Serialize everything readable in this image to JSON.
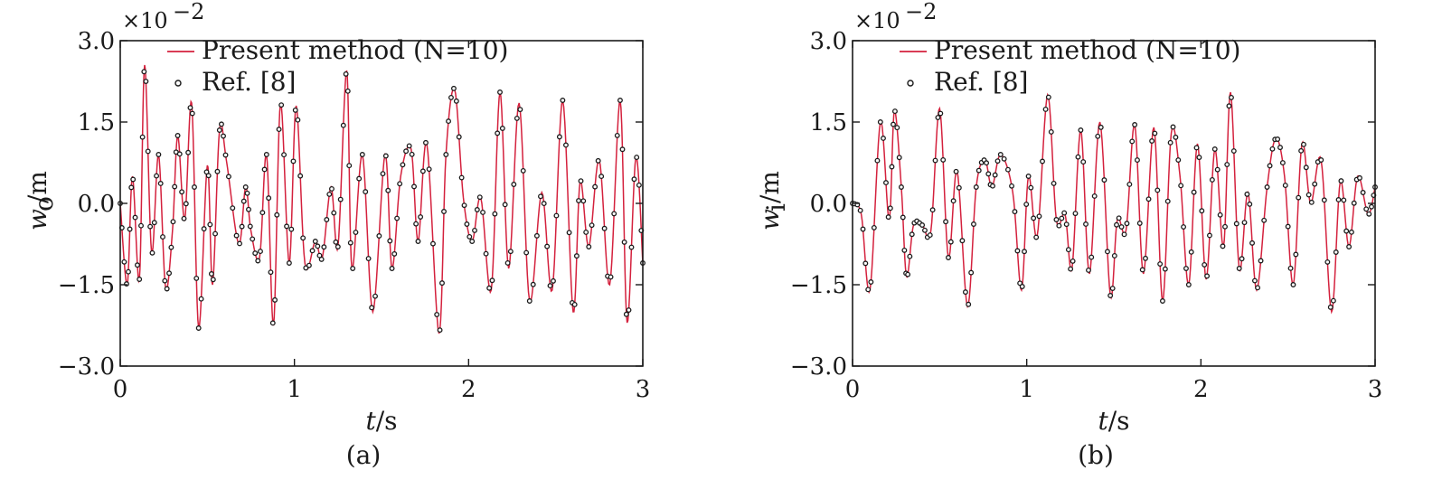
{
  "chart_data": [
    {
      "id": "a",
      "type": "line",
      "caption": "(a)",
      "xlabel": "t/s",
      "ylabel": "w_o/m",
      "ylabel_main": "w",
      "ylabel_sub": "o",
      "ylabel_unit": "/m",
      "sci_multiplier": "×10",
      "sci_exponent": "−2",
      "xlim": [
        0,
        3
      ],
      "ylim": [
        -3.0,
        3.0
      ],
      "xticks": [
        0,
        1,
        2,
        3
      ],
      "xtick_labels": [
        "0",
        "1",
        "2",
        "3"
      ],
      "yticks": [
        -3.0,
        -1.5,
        0.0,
        1.5,
        3.0
      ],
      "ytick_labels": [
        "−3.0",
        "−1.5",
        "0.0",
        "1.5",
        "3.0"
      ],
      "legend": [
        {
          "label": "Present method (N=10)",
          "marker": "line",
          "color": "#d4213d"
        },
        {
          "label": "Ref. [8]",
          "marker": "open-circle",
          "color": "#1a1a1a"
        }
      ],
      "series": [
        {
          "name": "Present method (N=10)",
          "x": [
            0.0,
            0.04,
            0.07,
            0.11,
            0.14,
            0.18,
            0.22,
            0.26,
            0.3,
            0.33,
            0.37,
            0.41,
            0.45,
            0.5,
            0.53,
            0.57,
            0.61,
            0.68,
            0.72,
            0.75,
            0.8,
            0.84,
            0.88,
            0.92,
            0.97,
            1.01,
            1.06,
            1.12,
            1.16,
            1.21,
            1.25,
            1.3,
            1.33,
            1.39,
            1.45,
            1.52,
            1.56,
            1.61,
            1.67,
            1.71,
            1.76,
            1.83,
            1.87,
            1.92,
            1.97,
            2.02,
            2.07,
            2.13,
            2.18,
            2.23,
            2.29,
            2.35,
            2.42,
            2.48,
            2.54,
            2.6,
            2.64,
            2.69,
            2.75,
            2.81,
            2.87,
            2.91,
            2.96,
            3.0
          ],
          "y": [
            0.0,
            -1.5,
            0.5,
            -1.4,
            2.55,
            -0.9,
            0.9,
            -1.55,
            -0.5,
            1.25,
            -0.3,
            1.85,
            -2.3,
            0.7,
            -1.5,
            1.35,
            0.78,
            -0.75,
            0.3,
            -0.5,
            -1.0,
            0.9,
            -2.25,
            1.85,
            -1.1,
            1.8,
            -1.1,
            -0.7,
            -1.0,
            0.3,
            -0.8,
            2.45,
            -1.2,
            0.9,
            -2.0,
            0.9,
            -1.2,
            0.5,
            1.0,
            -0.7,
            1.1,
            -2.4,
            0.9,
            2.1,
            0.1,
            -0.7,
            0.1,
            -1.6,
            2.05,
            -1.2,
            1.85,
            -1.8,
            0.2,
            -1.6,
            1.9,
            -2.0,
            0.4,
            -0.8,
            0.8,
            -1.5,
            1.9,
            -2.2,
            0.85,
            -1.1
          ],
          "color": "#d4213d"
        },
        {
          "name": "Ref. [8]",
          "marker": "open-circle",
          "color": "#1a1a1a"
        }
      ]
    },
    {
      "id": "b",
      "type": "line",
      "caption": "(b)",
      "xlabel": "t/s",
      "ylabel": "w_i/m",
      "ylabel_main": "w",
      "ylabel_sub": "i",
      "ylabel_unit": "/m",
      "sci_multiplier": "×10",
      "sci_exponent": "−2",
      "xlim": [
        0,
        3
      ],
      "ylim": [
        -3.0,
        3.0
      ],
      "xticks": [
        0,
        1,
        2,
        3
      ],
      "xtick_labels": [
        "0",
        "1",
        "2",
        "3"
      ],
      "yticks": [
        -3.0,
        -1.5,
        0.0,
        1.5,
        3.0
      ],
      "ytick_labels": [
        "−3.0",
        "−1.5",
        "0.0",
        "1.5",
        "3.0"
      ],
      "legend": [
        {
          "label": "Present method (N=10)",
          "marker": "line",
          "color": "#d4213d"
        },
        {
          "label": "Ref. [8]",
          "marker": "open-circle",
          "color": "#1a1a1a"
        }
      ],
      "series": [
        {
          "name": "Present method (N=10)",
          "x": [
            0.0,
            0.05,
            0.1,
            0.16,
            0.21,
            0.24,
            0.28,
            0.31,
            0.35,
            0.4,
            0.45,
            0.5,
            0.55,
            0.6,
            0.66,
            0.71,
            0.76,
            0.8,
            0.85,
            0.92,
            0.97,
            1.01,
            1.06,
            1.12,
            1.17,
            1.22,
            1.26,
            1.31,
            1.36,
            1.42,
            1.48,
            1.52,
            1.57,
            1.62,
            1.67,
            1.73,
            1.78,
            1.83,
            1.88,
            1.93,
            1.98,
            2.03,
            2.08,
            2.13,
            2.17,
            2.22,
            2.27,
            2.32,
            2.38,
            2.43,
            2.48,
            2.53,
            2.58,
            2.63,
            2.69,
            2.75,
            2.8,
            2.85,
            2.9,
            2.96,
            3.0
          ],
          "y": [
            0.0,
            -0.2,
            -1.6,
            1.5,
            -0.3,
            1.7,
            0.3,
            -1.35,
            -0.4,
            -0.4,
            -0.5,
            1.75,
            -1.0,
            0.6,
            -1.9,
            0.3,
            0.8,
            0.3,
            0.9,
            0.2,
            -1.6,
            0.5,
            -0.6,
            2.0,
            -0.3,
            -0.2,
            -1.2,
            1.35,
            -1.3,
            1.5,
            -1.7,
            -0.3,
            -0.5,
            1.45,
            -1.3,
            1.4,
            -1.8,
            1.3,
            0.5,
            -1.5,
            1.1,
            -1.4,
            1.0,
            -0.8,
            2.05,
            -1.2,
            0.2,
            -1.6,
            0.3,
            1.2,
            0.5,
            -1.5,
            1.1,
            0.0,
            0.8,
            -2.0,
            0.4,
            -0.8,
            0.5,
            -0.2,
            0.3
          ],
          "color": "#d4213d"
        },
        {
          "name": "Ref. [8]",
          "marker": "open-circle",
          "color": "#1a1a1a"
        }
      ]
    }
  ]
}
